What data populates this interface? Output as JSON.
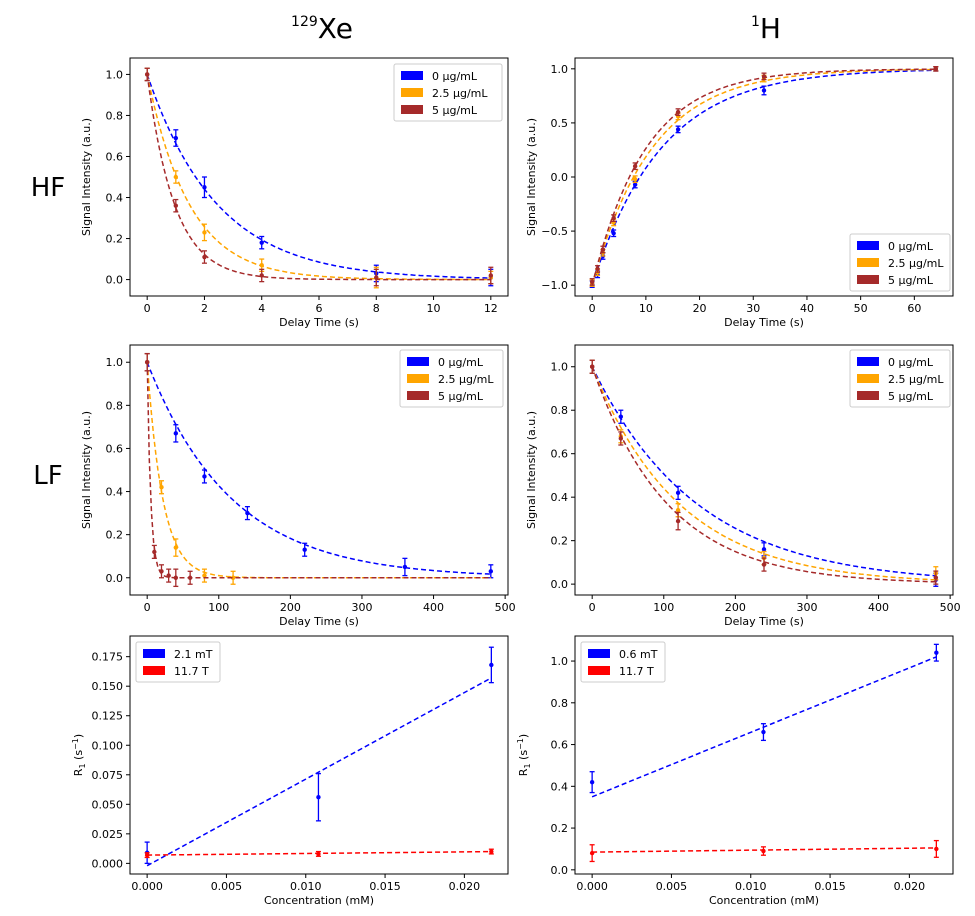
{
  "figure": {
    "col_titles": [
      {
        "sup": "129",
        "base": "Xe"
      },
      {
        "sup": "1",
        "base": "H"
      }
    ],
    "row_labels": [
      "HF",
      "LF"
    ]
  },
  "colors": {
    "0 µg/mL": "#0000ff",
    "2.5 µg/mL": "#ffa500",
    "5 µg/mL": "#a52a2a",
    "2.1 mT": "#0000ff",
    "0.6 mT": "#0000ff",
    "11.7 T": "#ff0000"
  },
  "chart_data": [
    {
      "id": "xe-hf",
      "type": "scatter",
      "xlabel": "Delay Time (s)",
      "ylabel": "Signal Intensity (a.u.)",
      "xlim": [
        -0.6,
        12.6
      ],
      "ylim": [
        -0.08,
        1.08
      ],
      "xticks": [
        0,
        2,
        4,
        6,
        8,
        10,
        12
      ],
      "xtick_labels": [
        "0",
        "2",
        "4",
        "6",
        "8",
        "10",
        "12"
      ],
      "yticks": [
        0,
        0.2,
        0.4,
        0.6,
        0.8,
        1.0
      ],
      "ytick_labels": [
        "0.0",
        "0.2",
        "0.4",
        "0.6",
        "0.8",
        "1.0"
      ],
      "legend": "top-right",
      "series": [
        {
          "name": "0 µg/mL",
          "x": [
            0,
            1,
            2,
            4,
            8,
            12
          ],
          "y": [
            1.0,
            0.69,
            0.45,
            0.18,
            0.03,
            0.01
          ],
          "err": [
            0.03,
            0.04,
            0.05,
            0.03,
            0.04,
            0.04
          ],
          "fit": {
            "kind": "exp_decay",
            "A": 1,
            "C": 0,
            "k": 0.41
          }
        },
        {
          "name": "2.5 µg/mL",
          "x": [
            0,
            1,
            2,
            4,
            8,
            12
          ],
          "y": [
            1.0,
            0.5,
            0.23,
            0.07,
            0.01,
            0.01
          ],
          "err": [
            0.03,
            0.03,
            0.04,
            0.03,
            0.05,
            0.03
          ],
          "fit": {
            "kind": "exp_decay",
            "A": 1,
            "C": 0,
            "k": 0.68
          }
        },
        {
          "name": "5 µg/mL",
          "x": [
            0,
            1,
            2,
            4,
            8,
            12
          ],
          "y": [
            1.0,
            0.36,
            0.11,
            0.02,
            0.01,
            0.02
          ],
          "err": [
            0.03,
            0.03,
            0.03,
            0.03,
            0.04,
            0.04
          ],
          "fit": {
            "kind": "exp_decay",
            "A": 1,
            "C": 0,
            "k": 1.05
          }
        }
      ]
    },
    {
      "id": "h-hf",
      "type": "scatter",
      "xlabel": "Delay Time (s)",
      "ylabel": "Signal Intensity (a.u.)",
      "xlim": [
        -3.2,
        67.2
      ],
      "ylim": [
        -1.1,
        1.1
      ],
      "xticks": [
        0,
        10,
        20,
        30,
        40,
        50,
        60
      ],
      "xtick_labels": [
        "0",
        "10",
        "20",
        "30",
        "40",
        "50",
        "60"
      ],
      "yticks": [
        -1.0,
        -0.5,
        0.0,
        0.5,
        1.0
      ],
      "ytick_labels": [
        "−1.0",
        "−0.5",
        "0.0",
        "0.5",
        "1.0"
      ],
      "legend": "bottom-right",
      "series": [
        {
          "name": "0 µg/mL",
          "x": [
            0,
            1,
            2,
            4,
            8,
            16,
            32,
            64
          ],
          "y": [
            -0.99,
            -0.9,
            -0.73,
            -0.52,
            -0.07,
            0.44,
            0.8,
            1.0
          ],
          "err": [
            0.03,
            0.03,
            0.03,
            0.03,
            0.03,
            0.03,
            0.04,
            0.02
          ],
          "fit": {
            "kind": "inversion",
            "k": 0.078
          }
        },
        {
          "name": "2.5 µg/mL",
          "x": [
            0,
            1,
            2,
            4,
            8,
            16,
            32,
            64
          ],
          "y": [
            -0.98,
            -0.88,
            -0.7,
            -0.42,
            -0.02,
            0.56,
            0.91,
            1.0
          ],
          "err": [
            0.03,
            0.03,
            0.03,
            0.03,
            0.03,
            0.03,
            0.03,
            0.02
          ],
          "fit": {
            "kind": "inversion",
            "k": 0.09
          }
        },
        {
          "name": "5 µg/mL",
          "x": [
            0,
            1,
            2,
            4,
            8,
            16,
            32,
            64
          ],
          "y": [
            -0.97,
            -0.85,
            -0.67,
            -0.38,
            0.1,
            0.6,
            0.93,
            1.0
          ],
          "err": [
            0.03,
            0.03,
            0.03,
            0.03,
            0.03,
            0.03,
            0.03,
            0.02
          ],
          "fit": {
            "kind": "inversion",
            "k": 0.1
          }
        }
      ]
    },
    {
      "id": "xe-lf",
      "type": "scatter",
      "xlabel": "Delay Time (s)",
      "ylabel": "Signal Intensity (a.u.)",
      "xlim": [
        -24,
        504
      ],
      "ylim": [
        -0.08,
        1.08
      ],
      "xticks": [
        0,
        100,
        200,
        300,
        400,
        500
      ],
      "xtick_labels": [
        "0",
        "100",
        "200",
        "300",
        "400",
        "500"
      ],
      "yticks": [
        0,
        0.2,
        0.4,
        0.6,
        0.8,
        1.0
      ],
      "ytick_labels": [
        "0.0",
        "0.2",
        "0.4",
        "0.6",
        "0.8",
        "1.0"
      ],
      "legend": "top-right",
      "series": [
        {
          "name": "0 µg/mL",
          "x": [
            0,
            40,
            80,
            140,
            220,
            360,
            480
          ],
          "y": [
            1.0,
            0.67,
            0.47,
            0.3,
            0.13,
            0.05,
            0.03
          ],
          "err": [
            0.04,
            0.04,
            0.03,
            0.03,
            0.03,
            0.04,
            0.03
          ],
          "fit": {
            "kind": "exp_decay",
            "A": 1,
            "C": 0,
            "k": 0.0085
          }
        },
        {
          "name": "2.5 µg/mL",
          "x": [
            0,
            20,
            40,
            80,
            120
          ],
          "y": [
            1.0,
            0.42,
            0.14,
            0.01,
            0.0
          ],
          "err": [
            0.04,
            0.03,
            0.04,
            0.03,
            0.03
          ],
          "fit": {
            "kind": "exp_decay",
            "A": 1,
            "C": 0,
            "k": 0.046
          }
        },
        {
          "name": "5 µg/mL",
          "x": [
            0,
            10,
            20,
            30,
            40,
            60
          ],
          "y": [
            1.0,
            0.12,
            0.03,
            0.01,
            0.0,
            0.0
          ],
          "err": [
            0.04,
            0.03,
            0.03,
            0.03,
            0.04,
            0.03
          ],
          "fit": {
            "kind": "exp_decay",
            "A": 1,
            "C": 0,
            "k": 0.2
          }
        }
      ]
    },
    {
      "id": "h-lf",
      "type": "scatter",
      "xlabel": "Delay Time (s)",
      "ylabel": "Signal Intensity (a.u.)",
      "xlim": [
        -24,
        504
      ],
      "ylim": [
        -0.05,
        1.1
      ],
      "xticks": [
        0,
        100,
        200,
        300,
        400,
        500
      ],
      "xtick_labels": [
        "0",
        "100",
        "200",
        "300",
        "400",
        "500"
      ],
      "yticks": [
        0,
        0.2,
        0.4,
        0.6,
        0.8,
        1.0
      ],
      "ytick_labels": [
        "0.0",
        "0.2",
        "0.4",
        "0.6",
        "0.8",
        "1.0"
      ],
      "legend": "top-right",
      "series": [
        {
          "name": "0 µg/mL",
          "x": [
            0,
            40,
            120,
            240,
            480
          ],
          "y": [
            1.0,
            0.77,
            0.42,
            0.16,
            0.02
          ],
          "err": [
            0.03,
            0.03,
            0.03,
            0.03,
            0.03
          ],
          "fit": {
            "kind": "exp_decay",
            "A": 1,
            "C": 0,
            "k": 0.0068
          }
        },
        {
          "name": "2.5 µg/mL",
          "x": [
            0,
            40,
            120,
            240,
            480
          ],
          "y": [
            1.0,
            0.68,
            0.34,
            0.12,
            0.05
          ],
          "err": [
            0.03,
            0.03,
            0.03,
            0.03,
            0.03
          ],
          "fit": {
            "kind": "exp_decay",
            "A": 1,
            "C": 0,
            "k": 0.0082
          }
        },
        {
          "name": "5 µg/mL",
          "x": [
            0,
            40,
            120,
            240,
            480
          ],
          "y": [
            1.0,
            0.67,
            0.29,
            0.09,
            0.03
          ],
          "err": [
            0.03,
            0.03,
            0.04,
            0.03,
            0.03
          ],
          "fit": {
            "kind": "exp_decay",
            "A": 1,
            "C": 0,
            "k": 0.0095
          }
        }
      ]
    },
    {
      "id": "xe-r1",
      "type": "scatter",
      "xlabel": "Concentration (mM)",
      "ylabel_base": "R",
      "ylabel_sub": "1",
      "ylabel_unit": " (s",
      "ylabel_sup": "−1",
      "ylabel_end": ")",
      "xlim": [
        -0.00108,
        0.02275
      ],
      "ylim": [
        -0.009,
        0.1925
      ],
      "xticks": [
        0,
        0.005,
        0.01,
        0.015,
        0.02
      ],
      "xtick_labels": [
        "0.000",
        "0.005",
        "0.010",
        "0.015",
        "0.020"
      ],
      "yticks": [
        0,
        0.025,
        0.05,
        0.075,
        0.1,
        0.125,
        0.15,
        0.175
      ],
      "ytick_labels": [
        "0.000",
        "0.025",
        "0.050",
        "0.075",
        "0.100",
        "0.125",
        "0.150",
        "0.175"
      ],
      "legend": "top-left",
      "series": [
        {
          "name": "2.1 mT",
          "x": [
            0,
            0.0108,
            0.0217
          ],
          "y": [
            0.009,
            0.056,
            0.168
          ],
          "err": [
            0.009,
            0.02,
            0.015
          ],
          "fit": {
            "kind": "linear",
            "x0": 0,
            "x1": 0.0217,
            "y0": -0.002,
            "y1": 0.157
          }
        },
        {
          "name": "11.7 T",
          "x": [
            0,
            0.0108,
            0.0217
          ],
          "y": [
            0.007,
            0.008,
            0.01
          ],
          "err": [
            0.002,
            0.002,
            0.002
          ],
          "fit": {
            "kind": "linear",
            "x0": 0,
            "x1": 0.0217,
            "y0": 0.007,
            "y1": 0.01
          }
        }
      ]
    },
    {
      "id": "h-r1",
      "type": "scatter",
      "xlabel": "Concentration (mM)",
      "ylabel_base": "R",
      "ylabel_sub": "1",
      "ylabel_unit": " (s",
      "ylabel_sup": "−1",
      "ylabel_end": ")",
      "xlim": [
        -0.00108,
        0.02275
      ],
      "ylim": [
        -0.02,
        1.12
      ],
      "xticks": [
        0,
        0.005,
        0.01,
        0.015,
        0.02
      ],
      "xtick_labels": [
        "0.000",
        "0.005",
        "0.010",
        "0.015",
        "0.020"
      ],
      "yticks": [
        0,
        0.2,
        0.4,
        0.6,
        0.8,
        1.0
      ],
      "ytick_labels": [
        "0.0",
        "0.2",
        "0.4",
        "0.6",
        "0.8",
        "1.0"
      ],
      "legend": "top-left",
      "series": [
        {
          "name": "0.6 mT",
          "x": [
            0,
            0.0108,
            0.0217
          ],
          "y": [
            0.42,
            0.66,
            1.04
          ],
          "err": [
            0.05,
            0.04,
            0.04
          ],
          "fit": {
            "kind": "linear",
            "x0": 0,
            "x1": 0.0217,
            "y0": 0.35,
            "y1": 1.02
          }
        },
        {
          "name": "11.7 T",
          "x": [
            0,
            0.0108,
            0.0217
          ],
          "y": [
            0.08,
            0.09,
            0.1
          ],
          "err": [
            0.04,
            0.02,
            0.04
          ],
          "fit": {
            "kind": "linear",
            "x0": 0,
            "x1": 0.0217,
            "y0": 0.085,
            "y1": 0.105
          }
        }
      ]
    }
  ]
}
